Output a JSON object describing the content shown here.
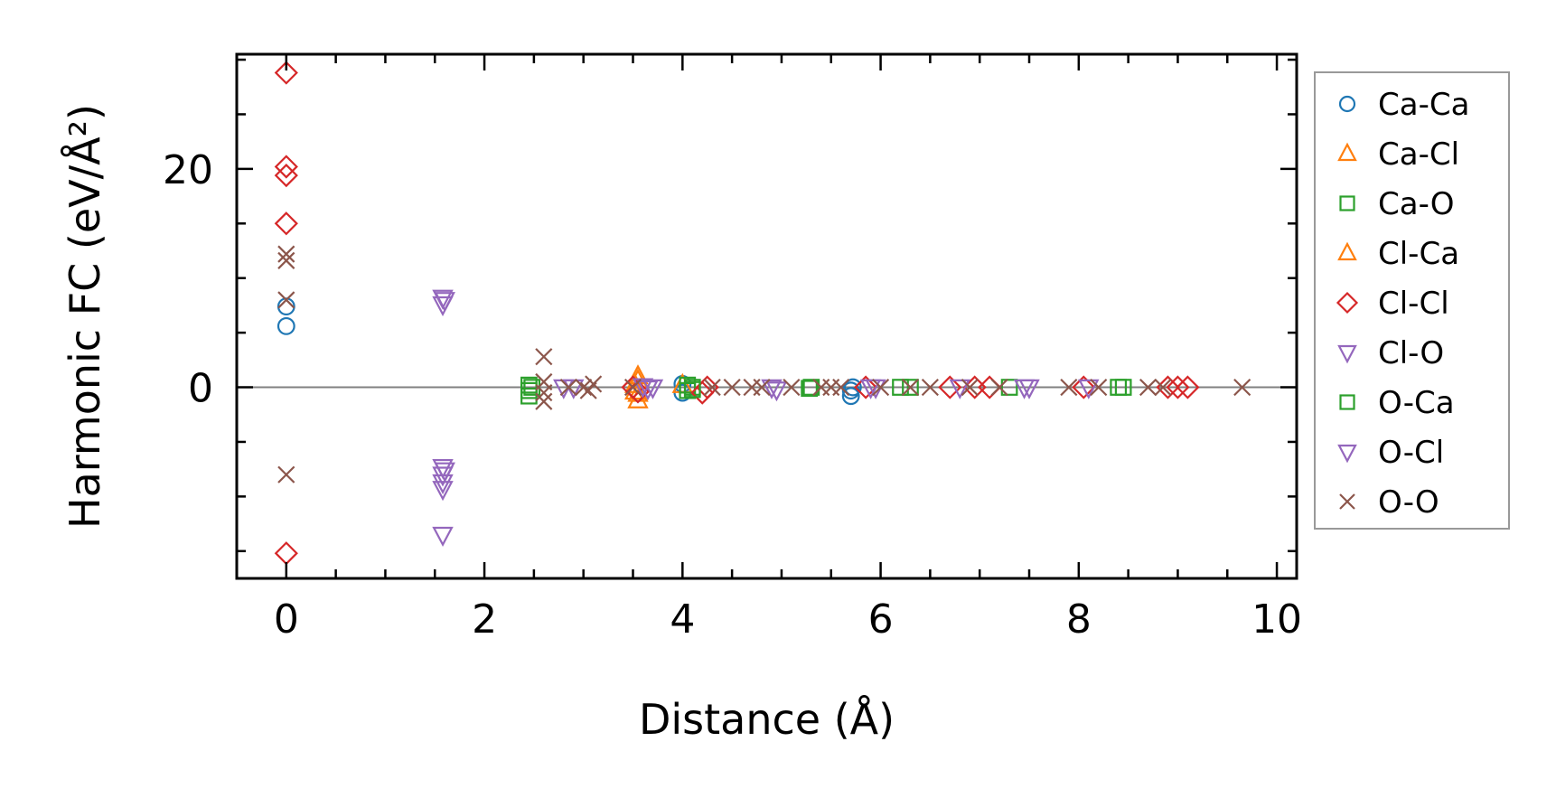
{
  "chart_data": {
    "type": "scatter",
    "title": "",
    "xlabel": "Distance (Å)",
    "ylabel": "Harmonic FC (eV/Å²)",
    "xlim": [
      -0.5,
      10.2
    ],
    "ylim": [
      -17.5,
      30.5
    ],
    "x_ticks": [
      0,
      2,
      4,
      6,
      8,
      10
    ],
    "x_tick_labels": [
      "0",
      "2",
      "4",
      "6",
      "8",
      "10"
    ],
    "y_ticks": [
      0,
      20
    ],
    "y_tick_labels": [
      "0",
      "20"
    ],
    "zero_line": true,
    "grid": false,
    "legend_position": "right-outside",
    "series": [
      {
        "name": "Ca-Ca",
        "marker": "circle",
        "color": "#1f77b4",
        "points": [
          [
            0.0,
            7.4
          ],
          [
            0.0,
            5.6
          ],
          [
            4.0,
            0.3
          ],
          [
            4.0,
            -0.5
          ],
          [
            5.7,
            -0.3
          ],
          [
            5.7,
            -0.8
          ],
          [
            5.72,
            0.0
          ]
        ]
      },
      {
        "name": "Ca-Cl",
        "marker": "triangle-up",
        "color": "#ff7f0e",
        "points": [
          [
            3.55,
            0.6
          ],
          [
            3.55,
            -0.6
          ],
          [
            3.55,
            -1.2
          ],
          [
            4.0,
            0.2
          ]
        ]
      },
      {
        "name": "Ca-O",
        "marker": "square",
        "color": "#2ca02c",
        "points": [
          [
            2.45,
            0.2
          ],
          [
            2.45,
            -0.3
          ],
          [
            2.45,
            -0.8
          ],
          [
            4.05,
            0.2
          ],
          [
            4.05,
            -0.3
          ],
          [
            4.1,
            0.0
          ],
          [
            5.3,
            0.0
          ],
          [
            6.2,
            0.0
          ],
          [
            7.3,
            0.0
          ],
          [
            8.45,
            0.0
          ]
        ]
      },
      {
        "name": "Cl-Ca",
        "marker": "triangle-up",
        "color": "#ff7f0e",
        "points": [
          [
            3.52,
            0.2
          ],
          [
            3.52,
            -0.4
          ],
          [
            3.55,
            1.0
          ]
        ]
      },
      {
        "name": "Cl-Cl",
        "marker": "diamond",
        "color": "#d62728",
        "points": [
          [
            0.0,
            28.8
          ],
          [
            0.0,
            20.2
          ],
          [
            0.0,
            19.4
          ],
          [
            0.0,
            15.0
          ],
          [
            0.0,
            -15.2
          ],
          [
            3.5,
            0.0
          ],
          [
            3.55,
            -0.4
          ],
          [
            4.25,
            0.0
          ],
          [
            4.2,
            -0.5
          ],
          [
            5.85,
            0.0
          ],
          [
            6.7,
            0.0
          ],
          [
            6.95,
            0.0
          ],
          [
            7.1,
            0.0
          ],
          [
            8.05,
            0.0
          ],
          [
            8.9,
            0.0
          ],
          [
            9.0,
            0.0
          ],
          [
            9.1,
            0.0
          ]
        ]
      },
      {
        "name": "Cl-O",
        "marker": "triangle-down",
        "color": "#9467bd",
        "points": [
          [
            1.58,
            8.2
          ],
          [
            1.58,
            7.6
          ],
          [
            1.58,
            -7.3
          ],
          [
            1.58,
            -8.0
          ],
          [
            1.58,
            -8.7
          ],
          [
            1.58,
            -9.3
          ],
          [
            1.58,
            -13.5
          ],
          [
            2.8,
            0.0
          ],
          [
            3.6,
            0.1
          ],
          [
            3.65,
            -0.1
          ],
          [
            4.9,
            0.0
          ],
          [
            5.9,
            0.0
          ],
          [
            6.8,
            0.0
          ],
          [
            7.5,
            0.0
          ],
          [
            8.1,
            0.0
          ]
        ]
      },
      {
        "name": "O-Ca",
        "marker": "square",
        "color": "#2ca02c",
        "points": [
          [
            2.48,
            0.0
          ],
          [
            4.1,
            -0.2
          ],
          [
            5.28,
            -0.1
          ],
          [
            6.3,
            0.0
          ],
          [
            8.4,
            0.0
          ]
        ]
      },
      {
        "name": "O-Cl",
        "marker": "triangle-down",
        "color": "#9467bd",
        "points": [
          [
            1.6,
            8.0
          ],
          [
            1.6,
            -7.6
          ],
          [
            2.9,
            0.0
          ],
          [
            3.7,
            0.0
          ],
          [
            4.95,
            -0.2
          ],
          [
            5.95,
            0.0
          ],
          [
            7.45,
            0.0
          ]
        ]
      },
      {
        "name": "O-O",
        "marker": "x",
        "color": "#8c564b",
        "points": [
          [
            0.0,
            12.2
          ],
          [
            0.0,
            11.6
          ],
          [
            0.0,
            8.0
          ],
          [
            0.0,
            -8.0
          ],
          [
            2.6,
            2.8
          ],
          [
            2.6,
            0.5
          ],
          [
            2.6,
            -0.5
          ],
          [
            2.6,
            -1.3
          ],
          [
            2.85,
            0.0
          ],
          [
            3.0,
            0.0
          ],
          [
            3.1,
            0.3
          ],
          [
            3.05,
            -0.3
          ],
          [
            3.5,
            0.0
          ],
          [
            4.3,
            0.0
          ],
          [
            4.5,
            0.0
          ],
          [
            4.7,
            0.0
          ],
          [
            4.8,
            0.0
          ],
          [
            5.1,
            0.0
          ],
          [
            5.4,
            0.0
          ],
          [
            5.5,
            0.0
          ],
          [
            5.6,
            0.0
          ],
          [
            6.0,
            0.0
          ],
          [
            6.3,
            0.0
          ],
          [
            6.5,
            0.0
          ],
          [
            6.9,
            0.0
          ],
          [
            7.2,
            0.0
          ],
          [
            7.9,
            0.0
          ],
          [
            8.2,
            0.0
          ],
          [
            8.7,
            0.0
          ],
          [
            8.85,
            0.0
          ],
          [
            9.65,
            0.0
          ]
        ]
      }
    ]
  }
}
